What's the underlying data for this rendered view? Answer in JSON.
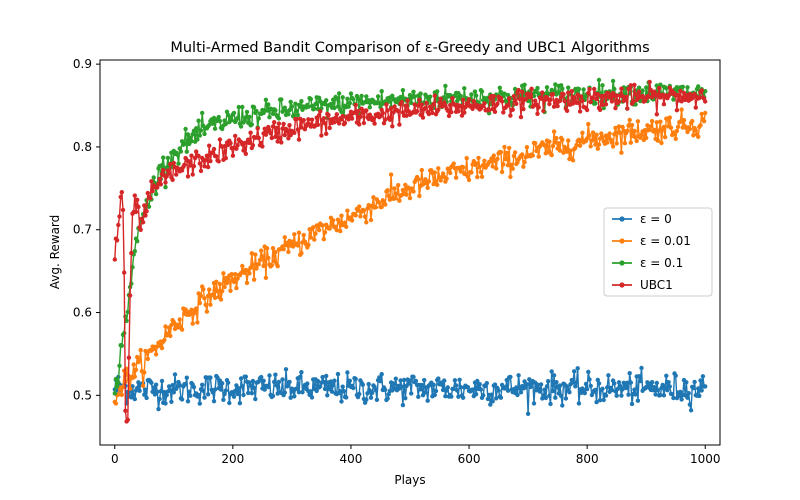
{
  "chart_data": {
    "type": "line",
    "title": "Multi-Armed Bandit Comparison of ε-Greedy and UBC1 Algorithms",
    "xlabel": "Plays",
    "ylabel": "Avg. Reward",
    "xlim": [
      -25,
      1025
    ],
    "ylim": [
      0.44,
      0.905
    ],
    "xticks": [
      0,
      200,
      400,
      600,
      800,
      1000
    ],
    "yticks": [
      0.5,
      0.6,
      0.7,
      0.8,
      0.9
    ],
    "xtick_labels": [
      "0",
      "200",
      "400",
      "600",
      "800",
      "1000"
    ],
    "ytick_labels": [
      "0.5",
      "0.6",
      "0.7",
      "0.8",
      "0.9"
    ],
    "grid": false,
    "legend_position": "center-right",
    "marker": "circle",
    "x_start": 0,
    "x_end": 1000,
    "series": [
      {
        "name": "ε = 0",
        "color": "#1f77b4",
        "x": [
          0,
          50,
          100,
          200,
          300,
          400,
          500,
          600,
          700,
          800,
          900,
          1000
        ],
        "values": [
          0.51,
          0.507,
          0.507,
          0.509,
          0.509,
          0.508,
          0.509,
          0.508,
          0.509,
          0.508,
          0.508,
          0.508
        ]
      },
      {
        "name": "ε = 0.01",
        "color": "#ff7f0e",
        "x": [
          0,
          20,
          50,
          100,
          150,
          200,
          250,
          300,
          350,
          400,
          450,
          500,
          550,
          600,
          650,
          700,
          750,
          800,
          850,
          900,
          950,
          1000
        ],
        "values": [
          0.5,
          0.52,
          0.54,
          0.585,
          0.615,
          0.64,
          0.66,
          0.68,
          0.7,
          0.715,
          0.735,
          0.75,
          0.763,
          0.772,
          0.781,
          0.791,
          0.8,
          0.808,
          0.815,
          0.82,
          0.825,
          0.83
        ]
      },
      {
        "name": "ε = 0.1",
        "color": "#2ca02c",
        "x": [
          0,
          10,
          20,
          30,
          40,
          50,
          60,
          70,
          80,
          100,
          120,
          150,
          200,
          250,
          300,
          400,
          500,
          600,
          700,
          800,
          900,
          1000
        ],
        "values": [
          0.5,
          0.55,
          0.6,
          0.65,
          0.7,
          0.72,
          0.74,
          0.76,
          0.775,
          0.79,
          0.805,
          0.82,
          0.835,
          0.84,
          0.845,
          0.853,
          0.857,
          0.86,
          0.862,
          0.864,
          0.865,
          0.865
        ]
      },
      {
        "name": "UBC1",
        "color": "#d62728",
        "x": [
          0,
          5,
          10,
          15,
          18,
          22,
          26,
          30,
          35,
          40,
          45,
          50,
          60,
          70,
          80,
          100,
          150,
          200,
          250,
          300,
          400,
          500,
          600,
          700,
          800,
          900,
          1000
        ],
        "values": [
          0.67,
          0.7,
          0.735,
          0.72,
          0.48,
          0.47,
          0.62,
          0.705,
          0.74,
          0.715,
          0.7,
          0.72,
          0.74,
          0.75,
          0.76,
          0.77,
          0.785,
          0.8,
          0.812,
          0.823,
          0.835,
          0.843,
          0.85,
          0.855,
          0.858,
          0.86,
          0.862
        ]
      }
    ]
  }
}
